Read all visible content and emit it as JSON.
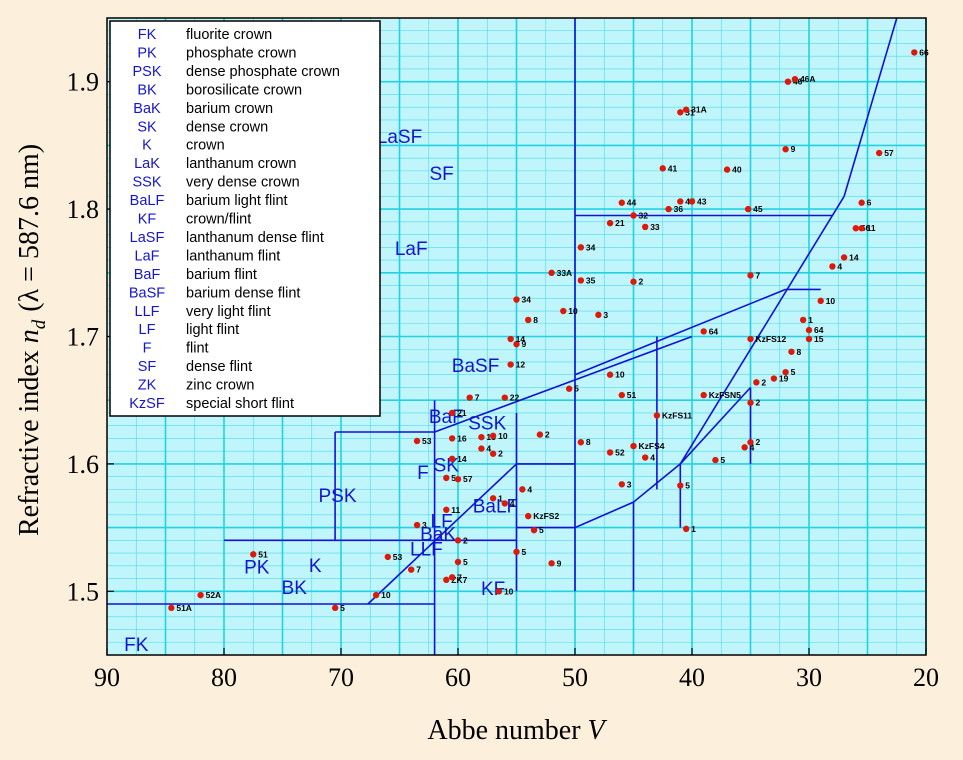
{
  "chart_data": {
    "type": "scatter",
    "title": "",
    "xlabel": "Abbe number",
    "xlabel_var": "V",
    "ylabel": "Refractive index",
    "ylabel_var": "n",
    "ylabel_sub": "d",
    "ylabel_paren": "(λ = 587.6 nm)",
    "x_reversed": true,
    "xlim": [
      90,
      20
    ],
    "ylim": [
      1.45,
      1.95
    ],
    "x_ticks": [
      "90",
      "80",
      "70",
      "60",
      "50",
      "40",
      "30",
      "20"
    ],
    "y_ticks": [
      "1.5",
      "1.6",
      "1.7",
      "1.8",
      "1.9"
    ],
    "grid": true,
    "legend_position": "top-left",
    "colors": {
      "background": "#fcf0dc",
      "plot": "#bff5fb",
      "grid": "#22d2e2",
      "boundary": "#1212d6",
      "point": "#dd1a0a",
      "label": "#1515d0"
    },
    "legend": [
      {
        "code": "FK",
        "name": "fluorite crown"
      },
      {
        "code": "PK",
        "name": "phosphate crown"
      },
      {
        "code": "PSK",
        "name": "dense phosphate crown"
      },
      {
        "code": "BK",
        "name": "borosilicate crown"
      },
      {
        "code": "BaK",
        "name": "barium crown"
      },
      {
        "code": "SK",
        "name": "dense crown"
      },
      {
        "code": "K",
        "name": "crown"
      },
      {
        "code": "LaK",
        "name": "lanthanum crown"
      },
      {
        "code": "SSK",
        "name": "very dense crown"
      },
      {
        "code": "BaLF",
        "name": "barium light flint"
      },
      {
        "code": "KF",
        "name": "crown/flint"
      },
      {
        "code": "LaSF",
        "name": "lanthanum dense flint"
      },
      {
        "code": "LaF",
        "name": "lanthanum flint"
      },
      {
        "code": "BaF",
        "name": "barium flint"
      },
      {
        "code": "BaSF",
        "name": "barium dense flint"
      },
      {
        "code": "LLF",
        "name": "very light flint"
      },
      {
        "code": "LF",
        "name": "light flint"
      },
      {
        "code": "F",
        "name": "flint"
      },
      {
        "code": "SF",
        "name": "dense flint"
      },
      {
        "code": "ZK",
        "name": "zinc crown"
      },
      {
        "code": "KzSF",
        "name": "special short flint"
      }
    ],
    "regions": [
      {
        "label": "FK",
        "x": 87.5,
        "y": 1.453
      },
      {
        "label": "PK",
        "x": 77.2,
        "y": 1.514
      },
      {
        "label": "PSK",
        "x": 70.3,
        "y": 1.57
      },
      {
        "label": "BK",
        "x": 74,
        "y": 1.498
      },
      {
        "label": "BaK",
        "x": 61.7,
        "y": 1.54
      },
      {
        "label": "SK",
        "x": 61,
        "y": 1.594
      },
      {
        "label": "K",
        "x": 72.2,
        "y": 1.515
      },
      {
        "label": "LaK",
        "x": 68.5,
        "y": 1.714
      },
      {
        "label": "SSK",
        "x": 57.5,
        "y": 1.627
      },
      {
        "label": "BaLF",
        "x": 56.8,
        "y": 1.562
      },
      {
        "label": "KF",
        "x": 57,
        "y": 1.497
      },
      {
        "label": "LaSF",
        "x": 65,
        "y": 1.852
      },
      {
        "label": "LaF",
        "x": 64,
        "y": 1.764
      },
      {
        "label": "BaF",
        "x": 61,
        "y": 1.632
      },
      {
        "label": "BaSF",
        "x": 58.5,
        "y": 1.672
      },
      {
        "label": "LLF",
        "x": 62.7,
        "y": 1.528
      },
      {
        "label": "LF",
        "x": 61.4,
        "y": 1.55
      },
      {
        "label": "F",
        "x": 63,
        "y": 1.588
      },
      {
        "label": "SF",
        "x": 61.4,
        "y": 1.823
      }
    ],
    "boundaries": [
      [
        [
          90,
          1.49
        ],
        [
          62,
          1.49
        ]
      ],
      [
        [
          62,
          1.45
        ],
        [
          62,
          1.65
        ]
      ],
      [
        [
          80,
          1.54
        ],
        [
          62,
          1.54
        ]
      ],
      [
        [
          67.7,
          1.49
        ],
        [
          55,
          1.6
        ]
      ],
      [
        [
          70.5,
          1.625
        ],
        [
          62,
          1.625
        ]
      ],
      [
        [
          70.5,
          1.54
        ],
        [
          70.5,
          1.625
        ]
      ],
      [
        [
          62,
          1.625
        ],
        [
          40,
          1.7
        ]
      ],
      [
        [
          62,
          1.54
        ],
        [
          55,
          1.54
        ]
      ],
      [
        [
          55,
          1.5
        ],
        [
          55,
          1.64
        ]
      ],
      [
        [
          55,
          1.6
        ],
        [
          50,
          1.6
        ]
      ],
      [
        [
          50,
          1.5
        ],
        [
          50,
          1.95
        ]
      ],
      [
        [
          55,
          1.55
        ],
        [
          50,
          1.55
        ]
      ],
      [
        [
          50,
          1.55
        ],
        [
          45,
          1.57
        ]
      ],
      [
        [
          45,
          1.57
        ],
        [
          41,
          1.6
        ]
      ],
      [
        [
          45,
          1.5
        ],
        [
          45,
          1.57
        ]
      ],
      [
        [
          41,
          1.55
        ],
        [
          41,
          1.6
        ]
      ],
      [
        [
          41,
          1.6
        ],
        [
          35,
          1.66
        ]
      ],
      [
        [
          35,
          1.6
        ],
        [
          35,
          1.66
        ]
      ],
      [
        [
          43,
          1.58
        ],
        [
          43,
          1.7
        ]
      ],
      [
        [
          50,
          1.67
        ],
        [
          32,
          1.737
        ]
      ],
      [
        [
          32,
          1.737
        ],
        [
          29,
          1.737
        ]
      ],
      [
        [
          50,
          1.795
        ],
        [
          28,
          1.795
        ]
      ],
      [
        [
          41,
          1.6
        ],
        [
          27,
          1.81
        ]
      ],
      [
        [
          27,
          1.81
        ],
        [
          22.5,
          1.95
        ]
      ]
    ],
    "points": [
      {
        "x": 84.5,
        "y": 1.487,
        "label": "51A"
      },
      {
        "x": 82,
        "y": 1.497,
        "label": "52A"
      },
      {
        "x": 77.5,
        "y": 1.529,
        "label": "51"
      },
      {
        "x": 70.5,
        "y": 1.487,
        "label": "5"
      },
      {
        "x": 67,
        "y": 1.497,
        "label": "10"
      },
      {
        "x": 66,
        "y": 1.527,
        "label": "53"
      },
      {
        "x": 64,
        "y": 1.517,
        "label": "7"
      },
      {
        "x": 63.5,
        "y": 1.552,
        "label": "3"
      },
      {
        "x": 63.5,
        "y": 1.618,
        "label": "53"
      },
      {
        "x": 61,
        "y": 1.509,
        "label": "ZK7"
      },
      {
        "x": 60.5,
        "y": 1.511,
        "label": "7"
      },
      {
        "x": 60,
        "y": 1.523,
        "label": "5"
      },
      {
        "x": 61,
        "y": 1.589,
        "label": "5"
      },
      {
        "x": 60,
        "y": 1.588,
        "label": "57"
      },
      {
        "x": 61,
        "y": 1.564,
        "label": "11"
      },
      {
        "x": 60,
        "y": 1.54,
        "label": "2"
      },
      {
        "x": 60.5,
        "y": 1.604,
        "label": "14"
      },
      {
        "x": 60.5,
        "y": 1.62,
        "label": "16"
      },
      {
        "x": 60.5,
        "y": 1.64,
        "label": "21"
      },
      {
        "x": 58,
        "y": 1.621,
        "label": "15"
      },
      {
        "x": 57,
        "y": 1.622,
        "label": "10"
      },
      {
        "x": 58,
        "y": 1.612,
        "label": "4"
      },
      {
        "x": 57,
        "y": 1.608,
        "label": "2"
      },
      {
        "x": 57,
        "y": 1.573,
        "label": "1"
      },
      {
        "x": 56,
        "y": 1.569,
        "label": "4"
      },
      {
        "x": 59,
        "y": 1.652,
        "label": "7"
      },
      {
        "x": 56,
        "y": 1.652,
        "label": "22"
      },
      {
        "x": 56.5,
        "y": 1.5,
        "label": "10"
      },
      {
        "x": 55,
        "y": 1.531,
        "label": "5"
      },
      {
        "x": 54.5,
        "y": 1.58,
        "label": "4"
      },
      {
        "x": 54,
        "y": 1.559,
        "label": "KzFS2"
      },
      {
        "x": 53.5,
        "y": 1.548,
        "label": "5"
      },
      {
        "x": 53,
        "y": 1.623,
        "label": "2"
      },
      {
        "x": 52,
        "y": 1.522,
        "label": "9"
      },
      {
        "x": 50.5,
        "y": 1.659,
        "label": "5"
      },
      {
        "x": 49.5,
        "y": 1.617,
        "label": "8"
      },
      {
        "x": 55,
        "y": 1.694,
        "label": "9"
      },
      {
        "x": 55.5,
        "y": 1.698,
        "label": "14"
      },
      {
        "x": 55.5,
        "y": 1.678,
        "label": "12"
      },
      {
        "x": 55,
        "y": 1.729,
        "label": "34"
      },
      {
        "x": 54,
        "y": 1.713,
        "label": "8"
      },
      {
        "x": 52,
        "y": 1.75,
        "label": "33A"
      },
      {
        "x": 51,
        "y": 1.72,
        "label": "10"
      },
      {
        "x": 49.5,
        "y": 1.744,
        "label": "35"
      },
      {
        "x": 49.5,
        "y": 1.77,
        "label": "34"
      },
      {
        "x": 48,
        "y": 1.717,
        "label": "3"
      },
      {
        "x": 47,
        "y": 1.789,
        "label": "21"
      },
      {
        "x": 46,
        "y": 1.805,
        "label": "44"
      },
      {
        "x": 45,
        "y": 1.795,
        "label": "32"
      },
      {
        "x": 44,
        "y": 1.786,
        "label": "33"
      },
      {
        "x": 45,
        "y": 1.743,
        "label": "2"
      },
      {
        "x": 47,
        "y": 1.67,
        "label": "10"
      },
      {
        "x": 46,
        "y": 1.654,
        "label": "51"
      },
      {
        "x": 47,
        "y": 1.609,
        "label": "52"
      },
      {
        "x": 46,
        "y": 1.584,
        "label": "3"
      },
      {
        "x": 45,
        "y": 1.614,
        "label": "KzFS4"
      },
      {
        "x": 44,
        "y": 1.605,
        "label": "4"
      },
      {
        "x": 43,
        "y": 1.638,
        "label": "KzFS11"
      },
      {
        "x": 42.5,
        "y": 1.832,
        "label": "41"
      },
      {
        "x": 41,
        "y": 1.876,
        "label": "31"
      },
      {
        "x": 40.5,
        "y": 1.878,
        "label": "31A"
      },
      {
        "x": 42,
        "y": 1.8,
        "label": "36"
      },
      {
        "x": 41,
        "y": 1.806,
        "label": "47"
      },
      {
        "x": 40,
        "y": 1.806,
        "label": "43"
      },
      {
        "x": 41,
        "y": 1.583,
        "label": "5"
      },
      {
        "x": 40.5,
        "y": 1.549,
        "label": "1"
      },
      {
        "x": 39,
        "y": 1.704,
        "label": "64"
      },
      {
        "x": 39,
        "y": 1.654,
        "label": "KzFSN5"
      },
      {
        "x": 38,
        "y": 1.603,
        "label": "5"
      },
      {
        "x": 37,
        "y": 1.831,
        "label": "40"
      },
      {
        "x": 35,
        "y": 1.698,
        "label": "KzFS12"
      },
      {
        "x": 34.5,
        "y": 1.664,
        "label": "2"
      },
      {
        "x": 35,
        "y": 1.617,
        "label": "2"
      },
      {
        "x": 35.5,
        "y": 1.613,
        "label": "4"
      },
      {
        "x": 35,
        "y": 1.648,
        "label": "2"
      },
      {
        "x": 35.2,
        "y": 1.8,
        "label": "45"
      },
      {
        "x": 35,
        "y": 1.748,
        "label": "7"
      },
      {
        "x": 33,
        "y": 1.667,
        "label": "19"
      },
      {
        "x": 32,
        "y": 1.672,
        "label": "5"
      },
      {
        "x": 31.5,
        "y": 1.688,
        "label": "8"
      },
      {
        "x": 31.8,
        "y": 1.9,
        "label": "46"
      },
      {
        "x": 31.2,
        "y": 1.902,
        "label": "46A"
      },
      {
        "x": 32,
        "y": 1.847,
        "label": "9"
      },
      {
        "x": 30.5,
        "y": 1.713,
        "label": "1"
      },
      {
        "x": 30,
        "y": 1.705,
        "label": "64"
      },
      {
        "x": 30,
        "y": 1.698,
        "label": "15"
      },
      {
        "x": 29,
        "y": 1.728,
        "label": "10"
      },
      {
        "x": 28,
        "y": 1.755,
        "label": "4"
      },
      {
        "x": 27,
        "y": 1.762,
        "label": "14"
      },
      {
        "x": 26,
        "y": 1.785,
        "label": "56"
      },
      {
        "x": 25.5,
        "y": 1.785,
        "label": "11"
      },
      {
        "x": 25.5,
        "y": 1.805,
        "label": "6"
      },
      {
        "x": 24,
        "y": 1.844,
        "label": "57"
      },
      {
        "x": 21,
        "y": 1.923,
        "label": "66"
      }
    ]
  }
}
